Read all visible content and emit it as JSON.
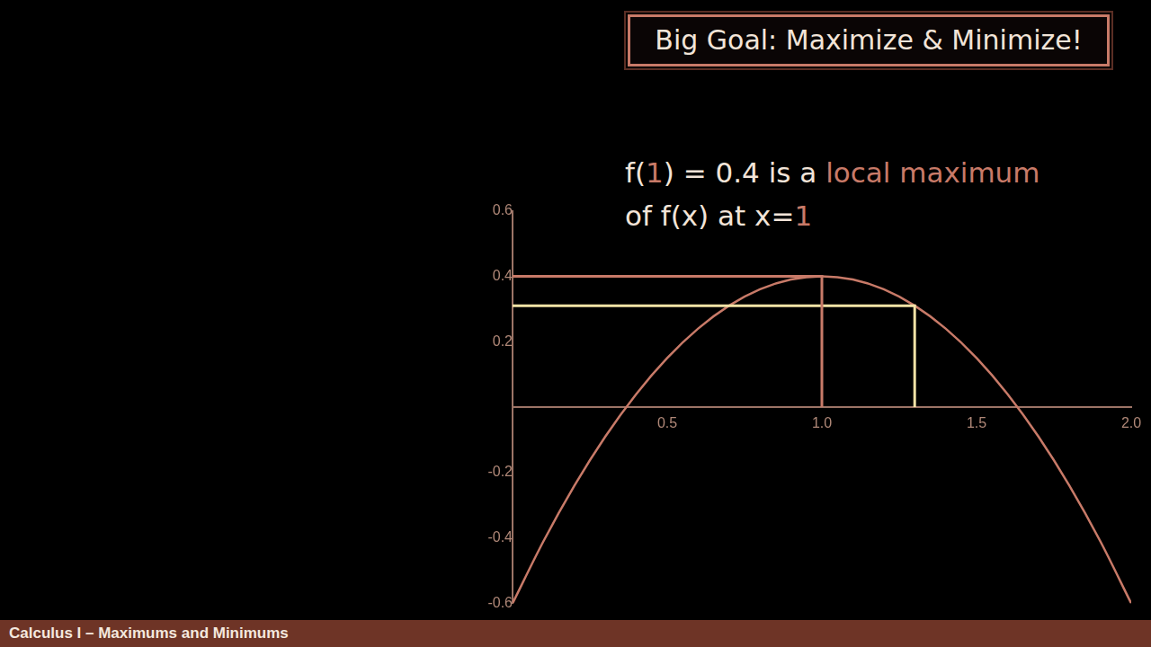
{
  "header": {
    "title": "Big Goal: Maximize & Minimize!"
  },
  "statement": {
    "lines": [
      [
        {
          "text": "f("
        },
        {
          "text": "1",
          "color": "#c87a68"
        },
        {
          "text": ") = 0.4 is a "
        },
        {
          "text": "local maximum",
          "color": "#c87a68"
        }
      ],
      [
        {
          "text": "of f(x) at x="
        },
        {
          "text": "1",
          "color": "#c87a68"
        }
      ]
    ]
  },
  "chart_data": {
    "type": "line",
    "color": "#c87a68",
    "grid": false,
    "x": [
      0,
      0.1,
      0.2,
      0.3,
      0.4,
      0.5,
      0.6,
      0.7,
      0.8,
      0.9,
      1.0,
      1.1,
      1.2,
      1.3,
      1.4,
      1.5,
      1.6,
      1.7,
      1.8,
      1.9,
      2.0
    ],
    "values": [
      -0.6,
      -0.41,
      -0.24,
      -0.09,
      0.04,
      0.15,
      0.24,
      0.31,
      0.36,
      0.39,
      0.4,
      0.39,
      0.36,
      0.31,
      0.24,
      0.15,
      0.04,
      -0.09,
      -0.24,
      -0.41,
      -0.6
    ],
    "xlim": [
      0,
      2.0
    ],
    "xticks": [
      0.5,
      {
        "value": 1.0,
        "label": "1.0"
      },
      1.5,
      {
        "value": 2.0,
        "label": "2.0"
      }
    ],
    "ylim": [
      -0.6,
      0.6
    ],
    "yticks": [
      -0.6,
      -0.4,
      -0.2,
      0.2,
      0.4,
      0.6
    ],
    "highlights": [
      {
        "x": 1.0,
        "y": 0.4,
        "color": "#c87a68"
      },
      {
        "x": 1.3,
        "y": 0.31,
        "color": "#f3e3a6"
      }
    ]
  },
  "footer": {
    "text": "Calculus I – Maximums and Minimums"
  }
}
